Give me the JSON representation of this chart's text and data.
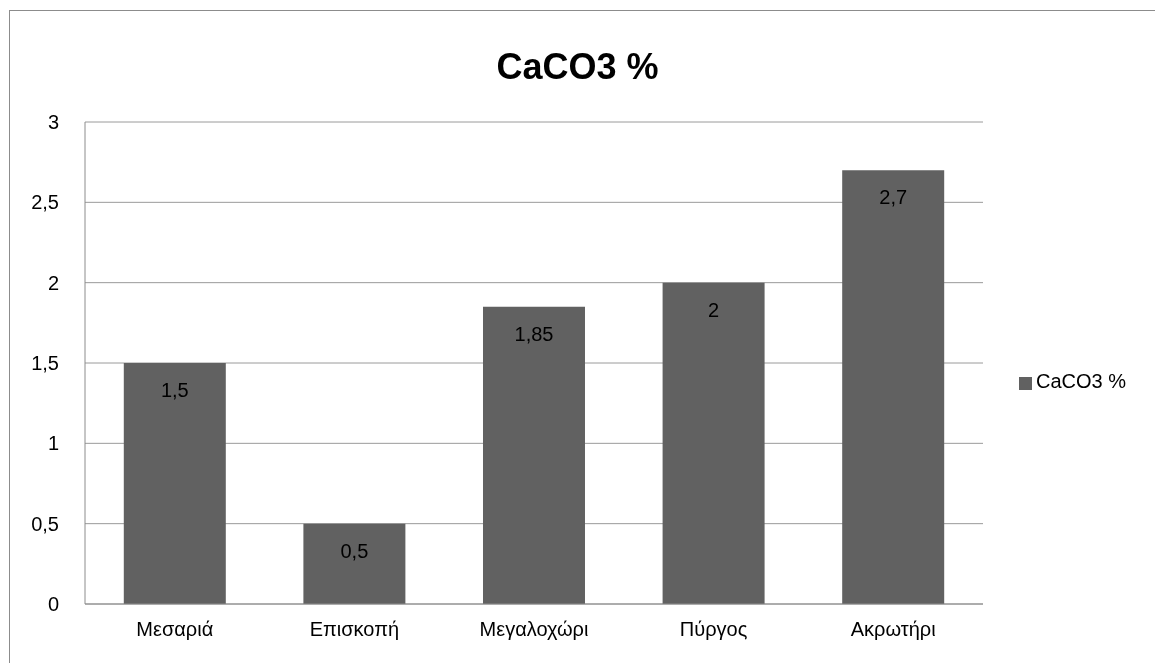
{
  "chart_data": {
    "type": "bar",
    "title": "CaCO3 %",
    "categories": [
      "Μεσαριά",
      "Επισκοπή",
      "Μεγαλοχώρι",
      "Πύργος",
      "Ακρωτήρι"
    ],
    "series": [
      {
        "name": "CaCO3 %",
        "color": "#616161",
        "values": [
          1.5,
          0.5,
          1.85,
          2,
          2.7
        ],
        "value_labels": [
          "1,5",
          "0,5",
          "1,85",
          "2",
          "2,7"
        ]
      }
    ],
    "ylim": [
      0,
      3
    ],
    "yticks": [
      0,
      {
        "value": 0.5,
        "label": "0,5"
      },
      1,
      {
        "value": 1.5,
        "label": "1,5"
      },
      2,
      {
        "value": 2.5,
        "label": "2,5"
      },
      3
    ],
    "grid": "y",
    "legend": "right"
  }
}
